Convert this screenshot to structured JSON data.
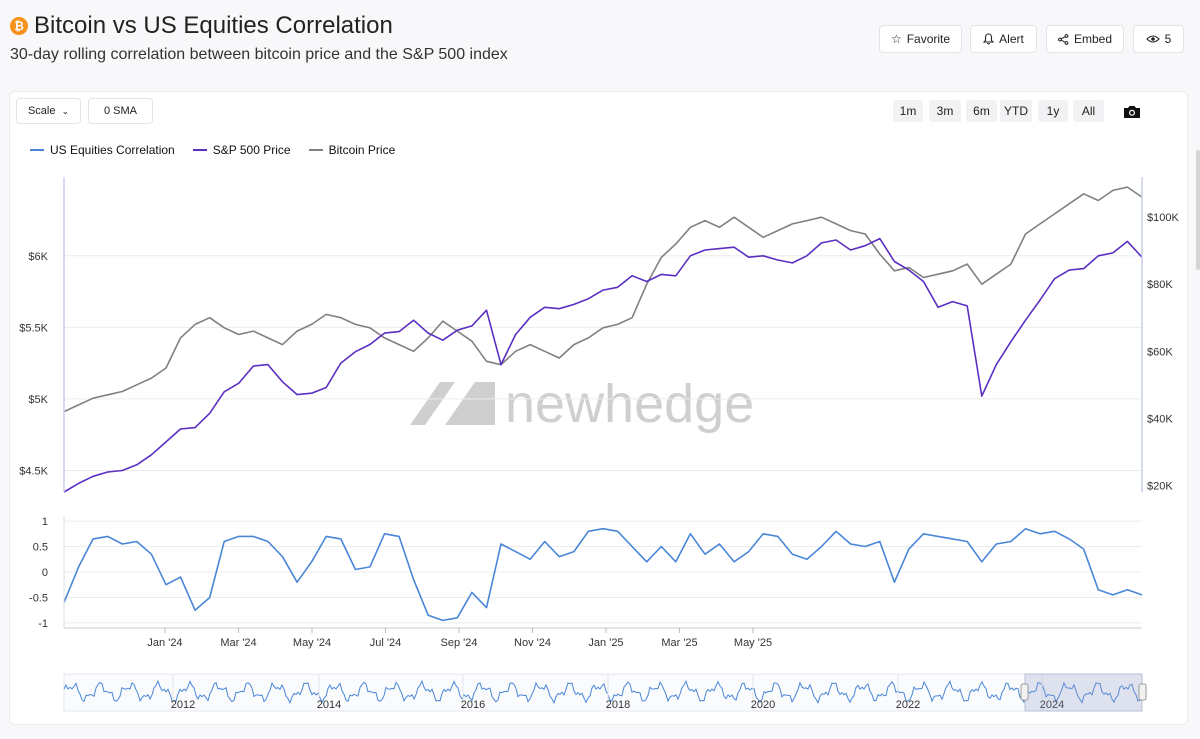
{
  "header": {
    "title": "Bitcoin vs US Equities Correlation",
    "subtitle": "30-day rolling correlation between bitcoin price and the S&P 500 index",
    "icon": "bitcoin-icon",
    "favorite_label": "Favorite",
    "alert_label": "Alert",
    "embed_label": "Embed",
    "views_count": "5"
  },
  "toolbar": {
    "scale_label": "Scale",
    "sma_label": "0 SMA",
    "ranges": [
      "1m",
      "3m",
      "6m",
      "YTD",
      "1y",
      "All"
    ],
    "camera_icon": "camera-icon"
  },
  "watermark": "newhedge",
  "colors": {
    "correlation": "#4a86d8",
    "sp500": "#5b2fc2",
    "bitcoin": "#808080",
    "grid": "#ececec"
  },
  "chart_data": [
    {
      "type": "line",
      "title": "",
      "legend_position": "top-left",
      "x_ticks": [],
      "y_left": {
        "ticks": [
          "$4.5K",
          "$5K",
          "$5.5K",
          "$6K"
        ],
        "tick_values": [
          4500,
          5000,
          5500,
          6000
        ],
        "range": [
          4350,
          6550
        ]
      },
      "y_right": {
        "ticks": [
          "$20K",
          "$40K",
          "$60K",
          "$80K",
          "$100K"
        ],
        "tick_values": [
          20000,
          40000,
          60000,
          80000,
          100000
        ],
        "range": [
          18000,
          112000
        ]
      },
      "grid": true,
      "series": [
        {
          "name": "S&P 500 Price",
          "axis": "left",
          "values": [
            4350,
            4410,
            4460,
            4490,
            4500,
            4540,
            4610,
            4700,
            4790,
            4800,
            4900,
            5050,
            5110,
            5230,
            5240,
            5120,
            5030,
            5040,
            5080,
            5250,
            5330,
            5380,
            5460,
            5470,
            5550,
            5460,
            5410,
            5480,
            5510,
            5620,
            5240,
            5450,
            5570,
            5640,
            5630,
            5660,
            5700,
            5760,
            5780,
            5860,
            5820,
            5870,
            5860,
            6000,
            6040,
            6050,
            6060,
            5990,
            6000,
            5970,
            5950,
            6000,
            6090,
            6110,
            6040,
            6070,
            6120,
            5960,
            5900,
            5820,
            5640,
            5680,
            5650,
            5020,
            5240,
            5400,
            5550,
            5690,
            5840,
            5900,
            5910,
            6000,
            6020,
            6100,
            5990
          ]
        },
        {
          "name": "Bitcoin Price",
          "axis": "right",
          "values": [
            42000,
            44000,
            46000,
            47000,
            48000,
            50000,
            52000,
            55000,
            64000,
            68000,
            70000,
            67000,
            65000,
            66000,
            64000,
            62000,
            66000,
            68000,
            71000,
            70000,
            68000,
            67000,
            64000,
            62000,
            60000,
            64000,
            69000,
            66000,
            63000,
            57000,
            56000,
            60000,
            62000,
            60000,
            58000,
            62000,
            64000,
            67000,
            68000,
            70000,
            80000,
            88000,
            92000,
            97000,
            99000,
            97000,
            100000,
            97000,
            94000,
            96000,
            98000,
            99000,
            100000,
            98000,
            96000,
            95000,
            89000,
            84000,
            85000,
            82000,
            83000,
            84000,
            86000,
            80000,
            83000,
            86000,
            95000,
            98000,
            101000,
            104000,
            107000,
            105000,
            108000,
            109000,
            106000
          ]
        }
      ]
    },
    {
      "type": "line",
      "title": "",
      "x_ticks": [
        "Jan '24",
        "Mar '24",
        "May '24",
        "Jul '24",
        "Sep '24",
        "Nov '24",
        "Jan '25",
        "Mar '25",
        "May '25"
      ],
      "y": {
        "ticks": [
          "1",
          "0.5",
          "0",
          "-0.5",
          "-1"
        ],
        "tick_values": [
          1,
          0.5,
          0,
          -0.5,
          -1
        ],
        "range": [
          -1.1,
          1.1
        ]
      },
      "series": [
        {
          "name": "US Equities Correlation",
          "values": [
            -0.6,
            0.1,
            0.65,
            0.7,
            0.55,
            0.6,
            0.35,
            -0.25,
            -0.1,
            -0.75,
            -0.5,
            0.6,
            0.7,
            0.7,
            0.6,
            0.3,
            -0.2,
            0.2,
            0.7,
            0.65,
            0.05,
            0.1,
            0.75,
            0.7,
            -0.15,
            -0.85,
            -0.95,
            -0.9,
            -0.4,
            -0.7,
            0.55,
            0.4,
            0.25,
            0.6,
            0.3,
            0.4,
            0.8,
            0.85,
            0.8,
            0.5,
            0.2,
            0.5,
            0.2,
            0.75,
            0.35,
            0.55,
            0.2,
            0.4,
            0.75,
            0.7,
            0.35,
            0.25,
            0.5,
            0.8,
            0.55,
            0.5,
            0.6,
            -0.2,
            0.45,
            0.75,
            0.7,
            0.65,
            0.6,
            0.2,
            0.55,
            0.6,
            0.85,
            0.75,
            0.8,
            0.65,
            0.45,
            -0.35,
            -0.45,
            -0.35,
            -0.45
          ]
        }
      ]
    },
    {
      "type": "area",
      "title": "",
      "x_ticks": [
        "2012",
        "2014",
        "2016",
        "2018",
        "2020",
        "2022",
        "2024"
      ],
      "selected_range": [
        "Nov 2023",
        "Jun 2025"
      ],
      "series": []
    }
  ]
}
